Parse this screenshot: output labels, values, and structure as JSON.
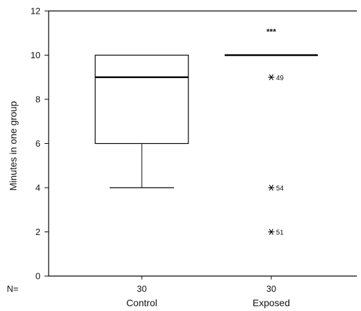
{
  "chart_data": {
    "type": "boxplot",
    "title": "",
    "xlabel": "",
    "ylabel": "Minutes in one group",
    "ylim": [
      0,
      12
    ],
    "yticks": [
      0,
      2,
      4,
      6,
      8,
      10,
      12
    ],
    "grid": false,
    "categories": [
      "Control",
      "Exposed"
    ],
    "n_label": "N=",
    "n_values": [
      "30",
      "30"
    ],
    "boxes": [
      {
        "name": "Control",
        "whisker_low": 4,
        "q1": 6,
        "median": 9,
        "q3": 10,
        "whisker_high": 10,
        "outliers": []
      },
      {
        "name": "Exposed",
        "whisker_low": 10,
        "q1": 10,
        "median": 10,
        "q3": 10,
        "whisker_high": 10,
        "outliers": [
          {
            "value": 9,
            "label": "49"
          },
          {
            "value": 4,
            "label": "54"
          },
          {
            "value": 2,
            "label": "51"
          }
        ],
        "extremes": [
          {
            "value": 11,
            "label": "***"
          }
        ]
      }
    ]
  }
}
